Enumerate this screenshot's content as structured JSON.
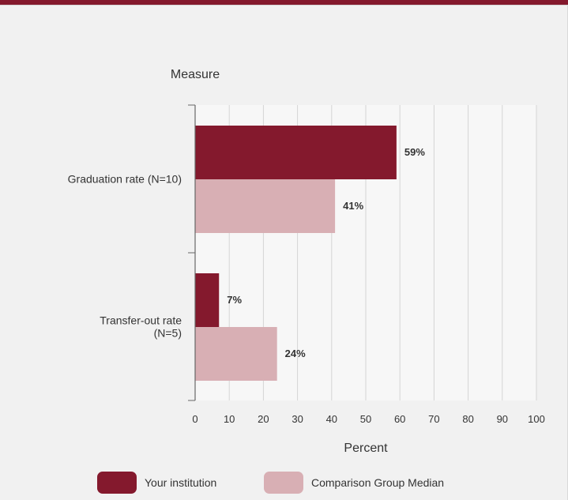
{
  "chart_data": {
    "type": "bar",
    "orientation": "horizontal",
    "y_title": "Measure",
    "x_title": "Percent",
    "categories": [
      [
        "Graduation rate (N=10)"
      ],
      [
        "Transfer-out rate",
        "(N=5)"
      ]
    ],
    "series": [
      {
        "name": "Your institution",
        "color": "#84192d",
        "values": [
          59,
          7
        ],
        "labels": [
          "59%",
          "7%"
        ]
      },
      {
        "name": "Comparison Group Median",
        "color": "#d8afb4",
        "values": [
          41,
          24
        ],
        "labels": [
          "41%",
          "24%"
        ]
      }
    ],
    "xlim": [
      0,
      100
    ],
    "xticks": [
      "0",
      "10",
      "20",
      "30",
      "40",
      "50",
      "60",
      "70",
      "80",
      "90",
      "100"
    ],
    "grid": true,
    "legend_position": "bottom"
  }
}
